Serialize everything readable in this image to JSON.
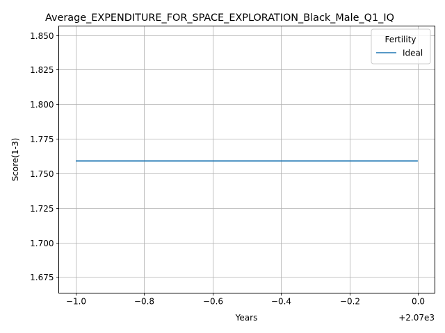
{
  "chart_data": {
    "type": "line",
    "title": "Average_EXPENDITURE_FOR_SPACE_EXPLORATION_Black_Male_Q1_IQ",
    "xlabel": "Years",
    "ylabel": "Score(1-3)",
    "x_offset_label": "+2.07e3",
    "x_tick_labels": [
      "−1.0",
      "−0.8",
      "−0.6",
      "−0.4",
      "−0.2",
      "0.0"
    ],
    "x_tick_values": [
      -1.0,
      -0.8,
      -0.6,
      -0.4,
      -0.2,
      0.0
    ],
    "y_tick_labels": [
      "1.675",
      "1.700",
      "1.725",
      "1.750",
      "1.775",
      "1.800",
      "1.825",
      "1.850"
    ],
    "y_tick_values": [
      1.675,
      1.7,
      1.725,
      1.75,
      1.775,
      1.8,
      1.825,
      1.85
    ],
    "xlim": [
      -1.05,
      0.05
    ],
    "ylim": [
      1.6634,
      1.8566
    ],
    "grid": true,
    "legend": {
      "title": "Fertility",
      "placement": "top-right"
    },
    "series": [
      {
        "name": "Ideal",
        "color": "#1f77b4",
        "x": [
          -1.0,
          0.0
        ],
        "y": [
          1.759,
          1.759
        ]
      }
    ]
  }
}
